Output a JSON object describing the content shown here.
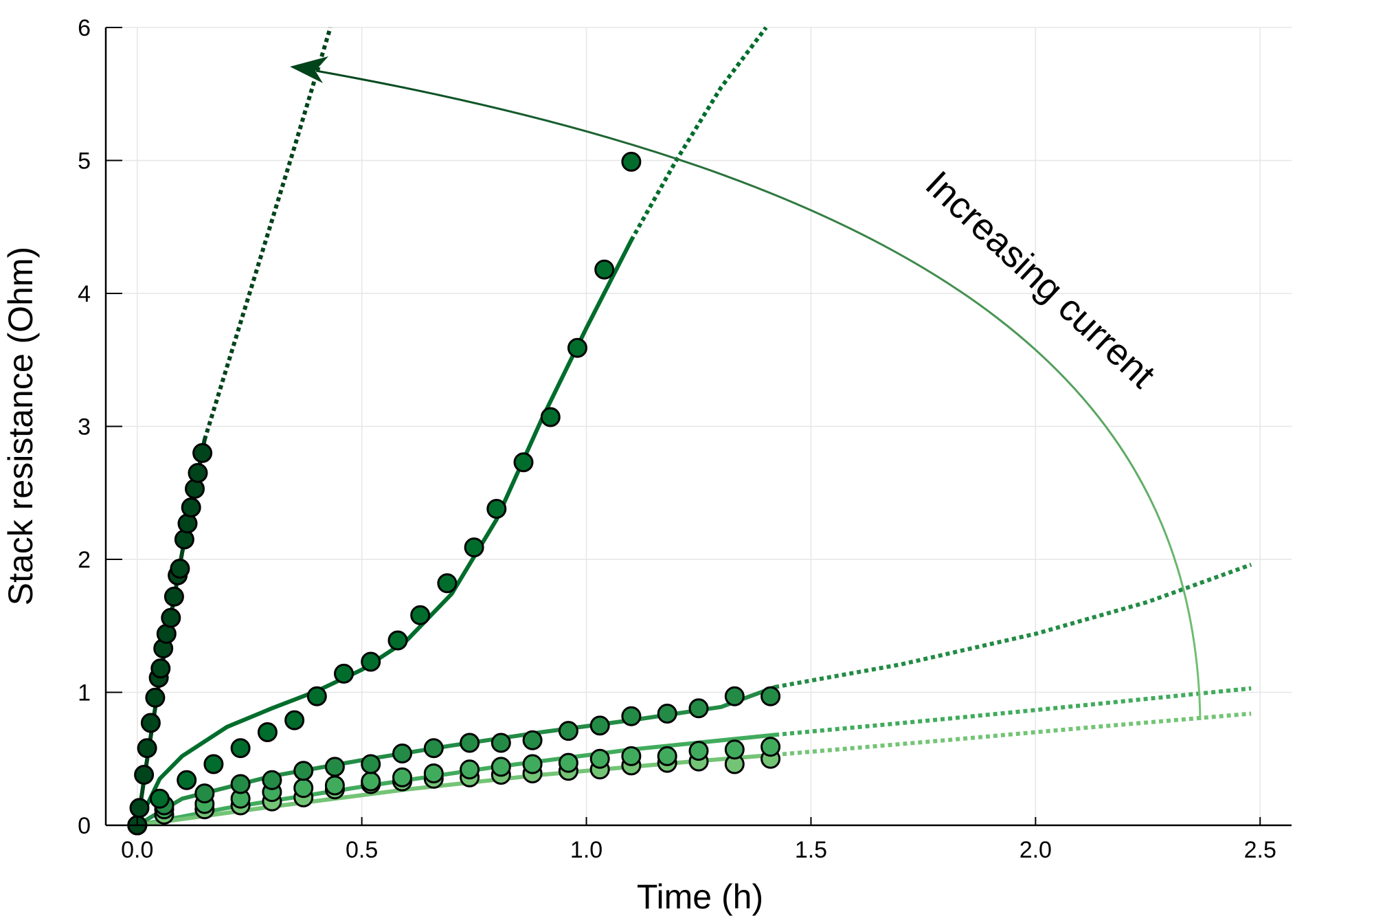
{
  "chart_data": {
    "type": "scatter",
    "xlabel": "Time (h)",
    "ylabel": "Stack resistance (Ohm)",
    "xlim": [
      -0.07,
      2.57
    ],
    "ylim": [
      0,
      6
    ],
    "xticks": [
      0.0,
      0.5,
      1.0,
      1.5,
      2.0,
      2.5
    ],
    "xtick_labels": [
      "0.0",
      "0.5",
      "1.0",
      "1.5",
      "2.0",
      "2.5"
    ],
    "yticks": [
      0,
      1,
      2,
      3,
      4,
      5,
      6
    ],
    "ytick_labels": [
      "0",
      "1",
      "2",
      "3",
      "4",
      "5",
      "6"
    ],
    "grid": true,
    "legend": "none",
    "annotation": "Increasing current",
    "series": [
      {
        "color": "#00441b",
        "points": [
          [
            0.0,
            0.0
          ],
          [
            0.005,
            0.13
          ],
          [
            0.015,
            0.38
          ],
          [
            0.022,
            0.58
          ],
          [
            0.03,
            0.77
          ],
          [
            0.04,
            0.96
          ],
          [
            0.048,
            1.11
          ],
          [
            0.052,
            1.18
          ],
          [
            0.058,
            1.33
          ],
          [
            0.065,
            1.44
          ],
          [
            0.075,
            1.56
          ],
          [
            0.082,
            1.72
          ],
          [
            0.09,
            1.88
          ],
          [
            0.095,
            1.93
          ],
          [
            0.105,
            2.15
          ],
          [
            0.112,
            2.27
          ],
          [
            0.12,
            2.39
          ],
          [
            0.128,
            2.53
          ],
          [
            0.135,
            2.65
          ],
          [
            0.145,
            2.8
          ]
        ],
        "fit": [
          [
            0.0,
            0.0
          ],
          [
            0.02,
            0.45
          ],
          [
            0.05,
            1.1
          ],
          [
            0.1,
            2.05
          ],
          [
            0.15,
            2.9
          ]
        ],
        "extrapolation": [
          [
            0.15,
            2.9
          ],
          [
            0.25,
            4.0
          ],
          [
            0.35,
            5.1
          ],
          [
            0.43,
            6.0
          ]
        ]
      },
      {
        "color": "#006d2c",
        "points": [
          [
            0.0,
            0.0
          ],
          [
            0.05,
            0.2
          ],
          [
            0.11,
            0.34
          ],
          [
            0.17,
            0.46
          ],
          [
            0.23,
            0.58
          ],
          [
            0.29,
            0.7
          ],
          [
            0.35,
            0.79
          ],
          [
            0.4,
            0.97
          ],
          [
            0.46,
            1.14
          ],
          [
            0.52,
            1.23
          ],
          [
            0.58,
            1.39
          ],
          [
            0.63,
            1.58
          ],
          [
            0.69,
            1.82
          ],
          [
            0.75,
            2.09
          ],
          [
            0.8,
            2.38
          ],
          [
            0.86,
            2.73
          ],
          [
            0.92,
            3.07
          ],
          [
            0.98,
            3.59
          ],
          [
            1.04,
            4.18
          ],
          [
            1.1,
            4.99
          ]
        ],
        "fit": [
          [
            0.0,
            0.0
          ],
          [
            0.05,
            0.35
          ],
          [
            0.1,
            0.52
          ],
          [
            0.2,
            0.74
          ],
          [
            0.3,
            0.88
          ],
          [
            0.4,
            1.01
          ],
          [
            0.5,
            1.17
          ],
          [
            0.6,
            1.39
          ],
          [
            0.7,
            1.74
          ],
          [
            0.8,
            2.3
          ],
          [
            0.9,
            3.05
          ],
          [
            1.0,
            3.74
          ],
          [
            1.1,
            4.4
          ]
        ],
        "extrapolation": [
          [
            1.1,
            4.4
          ],
          [
            1.2,
            5.0
          ],
          [
            1.3,
            5.55
          ],
          [
            1.4,
            6.0
          ]
        ]
      },
      {
        "color": "#238b45",
        "points": [
          [
            0.0,
            0.0
          ],
          [
            0.06,
            0.15
          ],
          [
            0.15,
            0.24
          ],
          [
            0.23,
            0.31
          ],
          [
            0.3,
            0.34
          ],
          [
            0.37,
            0.41
          ],
          [
            0.44,
            0.44
          ],
          [
            0.52,
            0.46
          ],
          [
            0.59,
            0.54
          ],
          [
            0.66,
            0.58
          ],
          [
            0.74,
            0.62
          ],
          [
            0.81,
            0.62
          ],
          [
            0.88,
            0.64
          ],
          [
            0.96,
            0.71
          ],
          [
            1.03,
            0.75
          ],
          [
            1.1,
            0.82
          ],
          [
            1.18,
            0.84
          ],
          [
            1.25,
            0.88
          ],
          [
            1.33,
            0.97
          ],
          [
            1.41,
            0.97
          ]
        ],
        "fit": [
          [
            0.0,
            0.0
          ],
          [
            0.1,
            0.2
          ],
          [
            0.3,
            0.37
          ],
          [
            0.5,
            0.49
          ],
          [
            0.7,
            0.6
          ],
          [
            0.9,
            0.7
          ],
          [
            1.1,
            0.79
          ],
          [
            1.3,
            0.89
          ],
          [
            1.42,
            1.04
          ]
        ],
        "extrapolation": [
          [
            1.42,
            1.04
          ],
          [
            1.7,
            1.21
          ],
          [
            2.0,
            1.44
          ],
          [
            2.25,
            1.68
          ],
          [
            2.48,
            1.96
          ]
        ]
      },
      {
        "color": "#41ab5d",
        "points": [
          [
            0.0,
            0.0
          ],
          [
            0.06,
            0.12
          ],
          [
            0.15,
            0.16
          ],
          [
            0.23,
            0.2
          ],
          [
            0.3,
            0.25
          ],
          [
            0.37,
            0.28
          ],
          [
            0.44,
            0.3
          ],
          [
            0.52,
            0.33
          ],
          [
            0.59,
            0.36
          ],
          [
            0.66,
            0.39
          ],
          [
            0.74,
            0.42
          ],
          [
            0.81,
            0.44
          ],
          [
            0.88,
            0.46
          ],
          [
            0.96,
            0.47
          ],
          [
            1.03,
            0.5
          ],
          [
            1.1,
            0.52
          ],
          [
            1.18,
            0.52
          ],
          [
            1.25,
            0.56
          ],
          [
            1.33,
            0.57
          ],
          [
            1.41,
            0.59
          ]
        ],
        "fit": [
          [
            0.0,
            0.0
          ],
          [
            0.2,
            0.13
          ],
          [
            0.5,
            0.29
          ],
          [
            0.8,
            0.44
          ],
          [
            1.1,
            0.57
          ],
          [
            1.42,
            0.68
          ]
        ],
        "extrapolation": [
          [
            1.42,
            0.68
          ],
          [
            1.8,
            0.8
          ],
          [
            2.1,
            0.9
          ],
          [
            2.48,
            1.03
          ]
        ]
      },
      {
        "color": "#74c476",
        "points": [
          [
            0.0,
            0.0
          ],
          [
            0.06,
            0.08
          ],
          [
            0.15,
            0.12
          ],
          [
            0.23,
            0.15
          ],
          [
            0.3,
            0.18
          ],
          [
            0.37,
            0.21
          ],
          [
            0.44,
            0.27
          ],
          [
            0.52,
            0.31
          ],
          [
            0.59,
            0.33
          ],
          [
            0.66,
            0.35
          ],
          [
            0.74,
            0.36
          ],
          [
            0.81,
            0.38
          ],
          [
            0.88,
            0.39
          ],
          [
            0.96,
            0.41
          ],
          [
            1.03,
            0.42
          ],
          [
            1.1,
            0.45
          ],
          [
            1.18,
            0.47
          ],
          [
            1.25,
            0.48
          ],
          [
            1.33,
            0.46
          ],
          [
            1.41,
            0.5
          ]
        ],
        "fit": [
          [
            0.0,
            0.0
          ],
          [
            0.3,
            0.14
          ],
          [
            0.6,
            0.27
          ],
          [
            0.9,
            0.38
          ],
          [
            1.2,
            0.47
          ],
          [
            1.42,
            0.53
          ]
        ],
        "extrapolation": [
          [
            1.42,
            0.53
          ],
          [
            1.8,
            0.64
          ],
          [
            2.1,
            0.73
          ],
          [
            2.48,
            0.84
          ]
        ]
      }
    ]
  },
  "colors": {
    "arrow_start": "#74c476",
    "arrow_end": "#00441b",
    "marker_stroke": "#000000"
  }
}
